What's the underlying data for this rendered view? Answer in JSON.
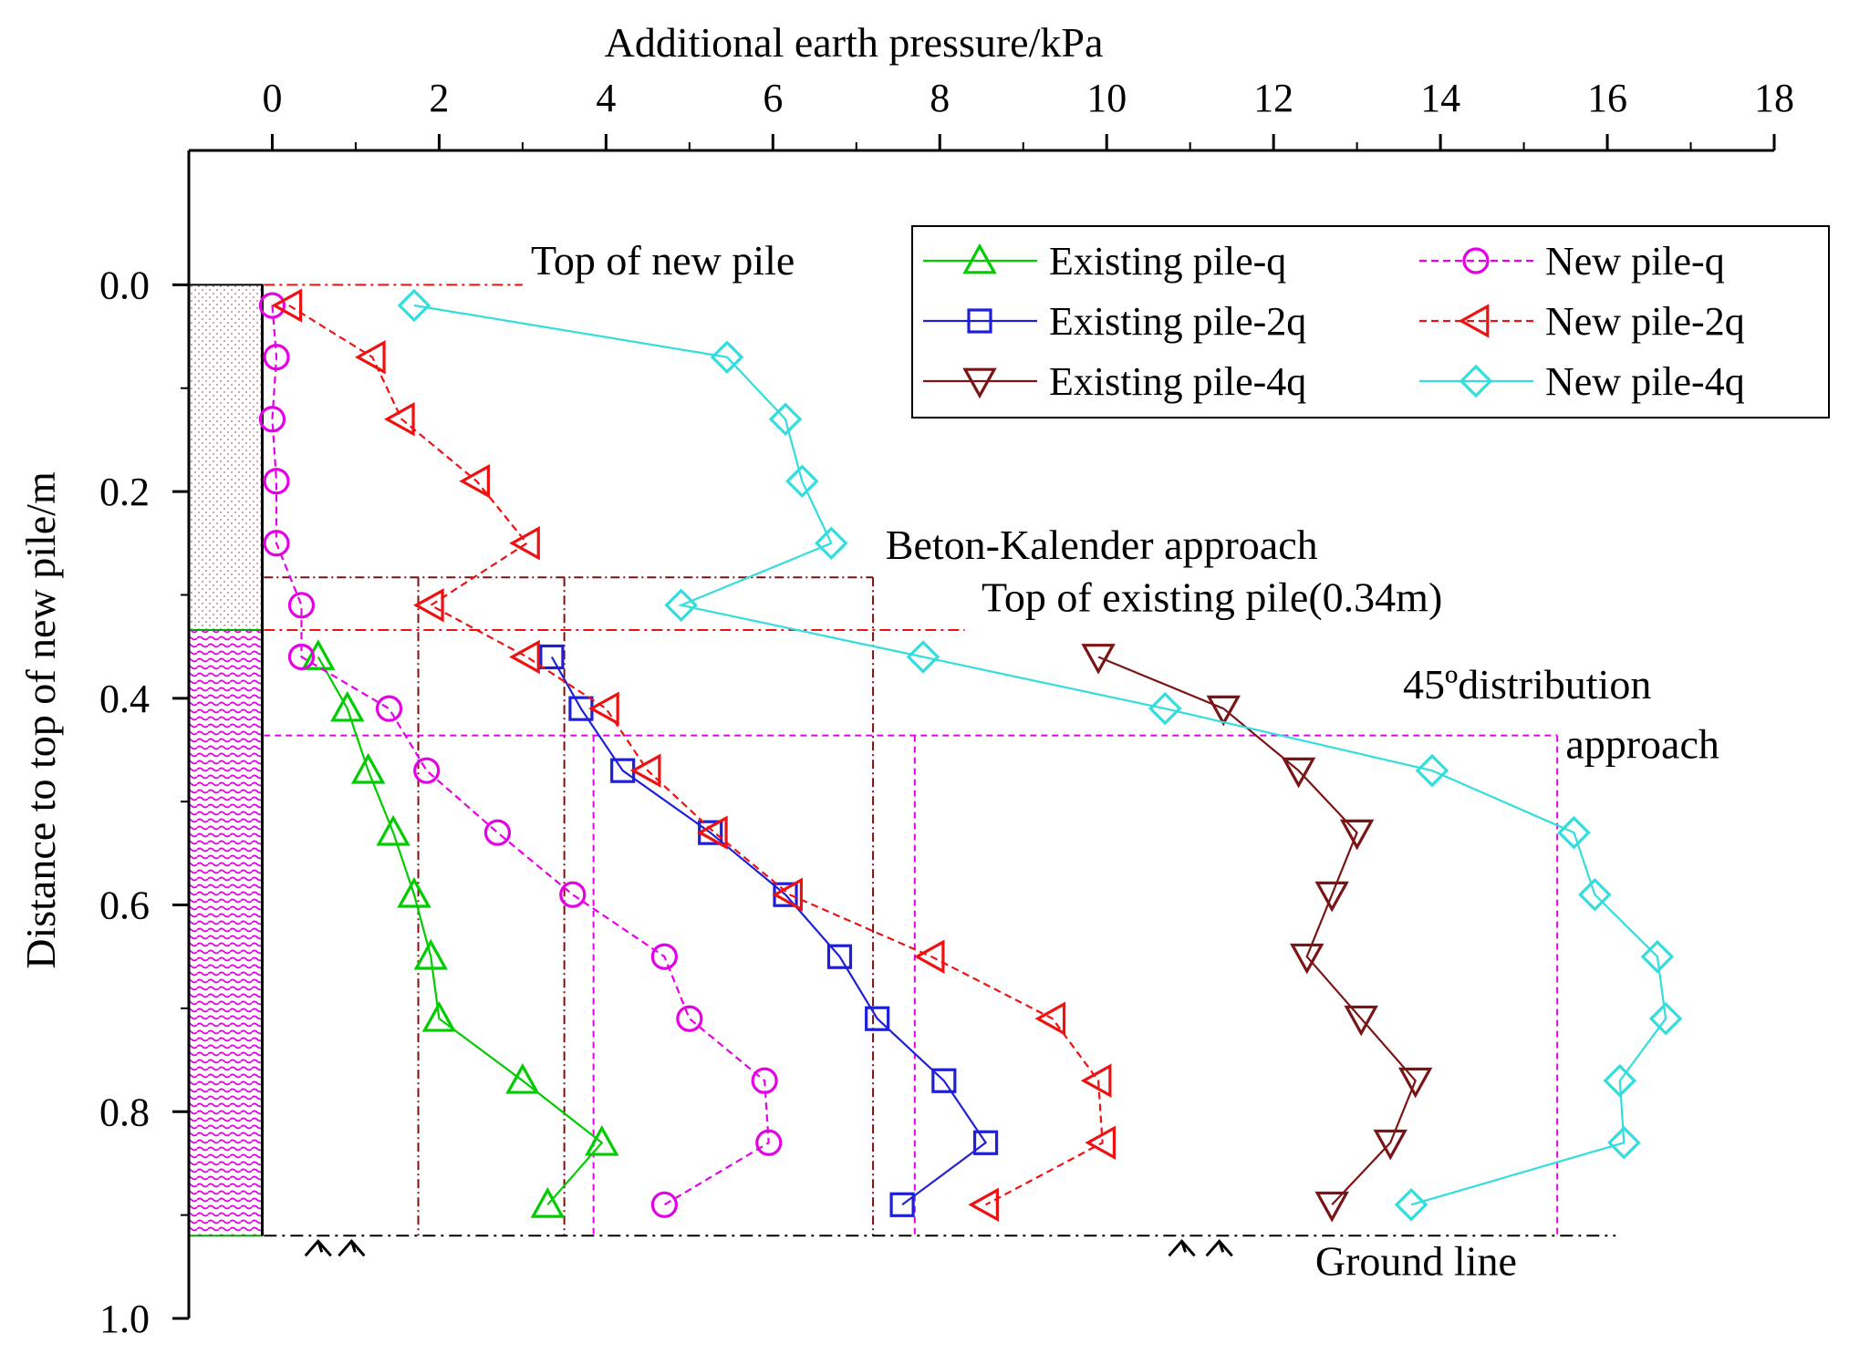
{
  "chart_data": {
    "type": "line",
    "x_axis": {
      "label": "Additional earth pressure/kPa",
      "position": "top",
      "range": [
        -1,
        18
      ],
      "ticks": [
        0,
        2,
        4,
        6,
        8,
        10,
        12,
        14,
        16,
        18
      ],
      "tick_labels": [
        "0",
        "2",
        "4",
        "6",
        "8",
        "10",
        "12",
        "14",
        "16",
        "18"
      ]
    },
    "y_axis": {
      "label": "Distance to top of new pile/m",
      "inverted": true,
      "range": [
        -0.13,
        1.0
      ],
      "ticks": [
        0.0,
        0.2,
        0.4,
        0.6,
        0.8,
        1.0
      ],
      "tick_labels": [
        "0.0",
        "0.2",
        "0.4",
        "0.6",
        "0.8",
        "1.0"
      ]
    },
    "series": [
      {
        "name": "Existing pile-q",
        "color": "#00cc00",
        "marker": "triangle-up",
        "line": "solid",
        "points": [
          [
            0.55,
            0.36
          ],
          [
            0.9,
            0.41
          ],
          [
            1.15,
            0.47
          ],
          [
            1.45,
            0.53
          ],
          [
            1.7,
            0.59
          ],
          [
            1.9,
            0.65
          ],
          [
            2.0,
            0.71
          ],
          [
            3.0,
            0.77
          ],
          [
            3.95,
            0.83
          ],
          [
            3.3,
            0.89
          ]
        ]
      },
      {
        "name": "Existing pile-2q",
        "color": "#1f1fd6",
        "marker": "square",
        "line": "solid",
        "points": [
          [
            3.35,
            0.36
          ],
          [
            3.7,
            0.41
          ],
          [
            4.2,
            0.47
          ],
          [
            5.25,
            0.53
          ],
          [
            6.15,
            0.59
          ],
          [
            6.8,
            0.65
          ],
          [
            7.25,
            0.71
          ],
          [
            8.05,
            0.77
          ],
          [
            8.55,
            0.83
          ],
          [
            7.55,
            0.89
          ]
        ]
      },
      {
        "name": "Existing pile-4q",
        "color": "#7b1515",
        "marker": "triangle-down",
        "line": "solid",
        "points": [
          [
            9.9,
            0.36
          ],
          [
            11.4,
            0.41
          ],
          [
            12.3,
            0.47
          ],
          [
            13.0,
            0.53
          ],
          [
            12.7,
            0.59
          ],
          [
            12.4,
            0.65
          ],
          [
            13.05,
            0.71
          ],
          [
            13.7,
            0.77
          ],
          [
            13.4,
            0.83
          ],
          [
            12.7,
            0.89
          ]
        ]
      },
      {
        "name": "New pile-q",
        "color": "#e600e6",
        "marker": "circle",
        "line": "dashed",
        "points": [
          [
            0.0,
            0.02
          ],
          [
            0.05,
            0.07
          ],
          [
            0.0,
            0.13
          ],
          [
            0.05,
            0.19
          ],
          [
            0.05,
            0.25
          ],
          [
            0.35,
            0.31
          ],
          [
            0.35,
            0.36
          ],
          [
            1.4,
            0.41
          ],
          [
            1.85,
            0.47
          ],
          [
            2.7,
            0.53
          ],
          [
            3.6,
            0.59
          ],
          [
            4.7,
            0.65
          ],
          [
            5.0,
            0.71
          ],
          [
            5.9,
            0.77
          ],
          [
            5.95,
            0.83
          ],
          [
            4.7,
            0.89
          ]
        ]
      },
      {
        "name": "New pile-2q",
        "color": "#ee1111",
        "marker": "triangle-left",
        "line": "dashed",
        "points": [
          [
            0.2,
            0.02
          ],
          [
            1.2,
            0.07
          ],
          [
            1.55,
            0.13
          ],
          [
            2.45,
            0.19
          ],
          [
            3.05,
            0.25
          ],
          [
            1.9,
            0.31
          ],
          [
            3.05,
            0.36
          ],
          [
            4.0,
            0.41
          ],
          [
            4.5,
            0.47
          ],
          [
            5.3,
            0.53
          ],
          [
            6.2,
            0.59
          ],
          [
            7.9,
            0.65
          ],
          [
            9.35,
            0.71
          ],
          [
            9.9,
            0.77
          ],
          [
            9.95,
            0.83
          ],
          [
            8.55,
            0.89
          ]
        ]
      },
      {
        "name": "New pile-4q",
        "color": "#33dddd",
        "marker": "diamond",
        "line": "solid",
        "points": [
          [
            1.7,
            0.02
          ],
          [
            5.45,
            0.07
          ],
          [
            6.15,
            0.13
          ],
          [
            6.35,
            0.19
          ],
          [
            6.7,
            0.25
          ],
          [
            4.9,
            0.31
          ],
          [
            7.8,
            0.36
          ],
          [
            10.7,
            0.41
          ],
          [
            13.9,
            0.47
          ],
          [
            15.6,
            0.53
          ],
          [
            15.85,
            0.59
          ],
          [
            16.6,
            0.65
          ],
          [
            16.7,
            0.71
          ],
          [
            16.15,
            0.77
          ],
          [
            16.2,
            0.83
          ],
          [
            13.65,
            0.89
          ]
        ]
      }
    ],
    "reference_lines": {
      "beton_kalender": {
        "color": "#7a1010",
        "top_depth": 0.283,
        "bottom_depth": 0.92,
        "x_positions": [
          -0.1,
          1.75,
          3.5,
          7.2
        ]
      },
      "distribution_45": {
        "color": "#e600e6",
        "top_depth": 0.436,
        "bottom_depth": 0.92,
        "x_positions": [
          -0.1,
          3.85,
          7.7,
          15.4
        ]
      },
      "top_of_new_pile": {
        "depth": 0.0,
        "color": "#ee1111",
        "x_range": [
          -0.1,
          3.0
        ]
      },
      "top_of_existing_pile": {
        "depth": 0.334,
        "color": "#ee1111",
        "x_range": [
          -0.1,
          8.3
        ]
      },
      "ground_line": {
        "depth": 0.92,
        "color": "#000000",
        "x_range": [
          -0.1,
          16.1
        ]
      }
    },
    "pile": {
      "top_fill": "#cc9999",
      "bottom_fill": "#e600e6",
      "x_range": [
        -1.0,
        -0.12
      ],
      "top_depth": 0.0,
      "existing_top_depth": 0.334,
      "bottom_depth": 0.92
    },
    "annotations": [
      {
        "text": "Top of new pile",
        "x": 3.1,
        "y": -0.01
      },
      {
        "text": "Beton-Kalender approach",
        "x": 7.35,
        "y": 0.265
      },
      {
        "text": "Top of existing pile(0.34m)",
        "x": 8.5,
        "y": 0.316
      },
      {
        "text": "45ºdistribution",
        "x": 13.55,
        "y": 0.4
      },
      {
        "text": "approach",
        "x": 15.5,
        "y": 0.458
      },
      {
        "text": "Ground line",
        "x": 12.5,
        "y": 0.958
      }
    ],
    "legend": {
      "position": "top-right",
      "entries": [
        "Existing pile-q",
        "New pile-q",
        "Existing pile-2q",
        "New pile-2q",
        "Existing pile-4q",
        "New pile-4q"
      ]
    }
  }
}
